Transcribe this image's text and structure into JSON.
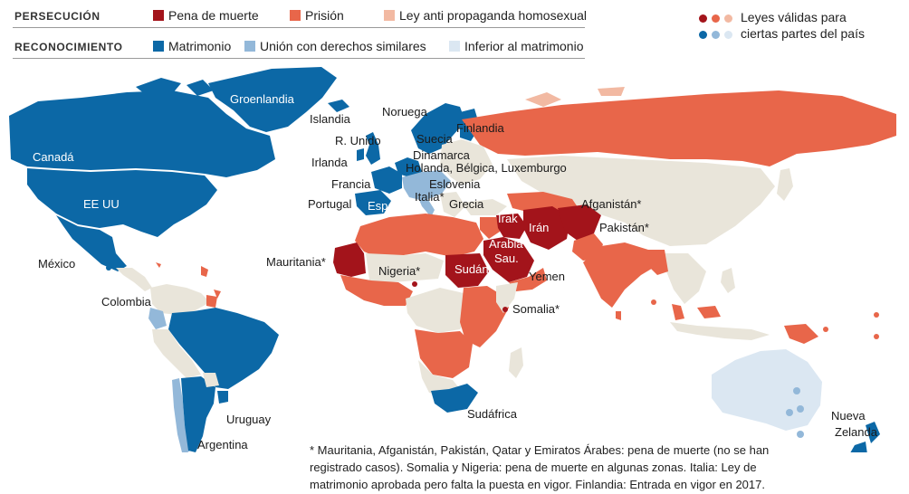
{
  "legend": {
    "persecution": {
      "title": "PERSECUCIÓN",
      "items": [
        {
          "label": "Pena de muerte",
          "color": "#a3141b"
        },
        {
          "label": "Prisión",
          "color": "#e8664a"
        },
        {
          "label": "Ley anti propaganda homosexual",
          "color": "#f2b9a2"
        }
      ]
    },
    "recognition": {
      "title": "RECONOCIMIENTO",
      "items": [
        {
          "label": "Matrimonio",
          "color": "#0c68a6"
        },
        {
          "label": "Unión con derechos similares",
          "color": "#93b8d9"
        },
        {
          "label": "Inferior al matrimonio",
          "color": "#dbe7f2"
        }
      ]
    },
    "partial": {
      "label_line1": "Leyes válidas para",
      "label_line2": "ciertas partes del país"
    }
  },
  "colors": {
    "land_neutral": "#e9e5da",
    "death": "#a3141b",
    "prison": "#e8664a",
    "propaganda": "#f2b9a2",
    "marriage": "#0c68a6",
    "union": "#93b8d9",
    "inferior": "#dbe7f2"
  },
  "map": {
    "labels": {
      "groenlandia": "Groenlandia",
      "islandia": "Islandia",
      "noruega": "Noruega",
      "finlandia": "Finlandia",
      "r_unido": "R. Unido",
      "suecia": "Suecia",
      "dinamarca": "Dinamarca",
      "irlanda": "Irlanda",
      "benelux": "Holanda, Bélgica, Luxemburgo",
      "francia": "Francia",
      "eslovenia": "Eslovenia",
      "italia": "Italia*",
      "portugal": "Portugal",
      "espana": "España",
      "grecia": "Grecia",
      "canada": "Canadá",
      "eeuu": "EE UU",
      "mexico": "México",
      "colombia": "Colombia",
      "uruguay": "Uruguay",
      "argentina": "Argentina",
      "mauritania": "Mauritania*",
      "nigeria": "Nigeria*",
      "sudan": "Sudán",
      "yemen": "Yemen",
      "somalia": "Somalia*",
      "sudafrica": "Sudáfrica",
      "irak": "Irak",
      "iran": "Irán",
      "arabia1": "Arabia",
      "arabia2": "Sau.",
      "afganistan": "Afganistán*",
      "pakistan": "Pakistán*",
      "nueva1": "Nueva",
      "nueva2": "Zelanda"
    }
  },
  "footnote": "* Mauritania, Afganistán, Pakistán, Qatar y Emiratos Árabes: pena de muerte (no se han registrado casos). Somalia y Nigeria: pena de muerte en algunas zonas. Italia: Ley de matrimonio aprobada pero falta la puesta en vigor. Finlandia: Entrada en vigor en 2017."
}
